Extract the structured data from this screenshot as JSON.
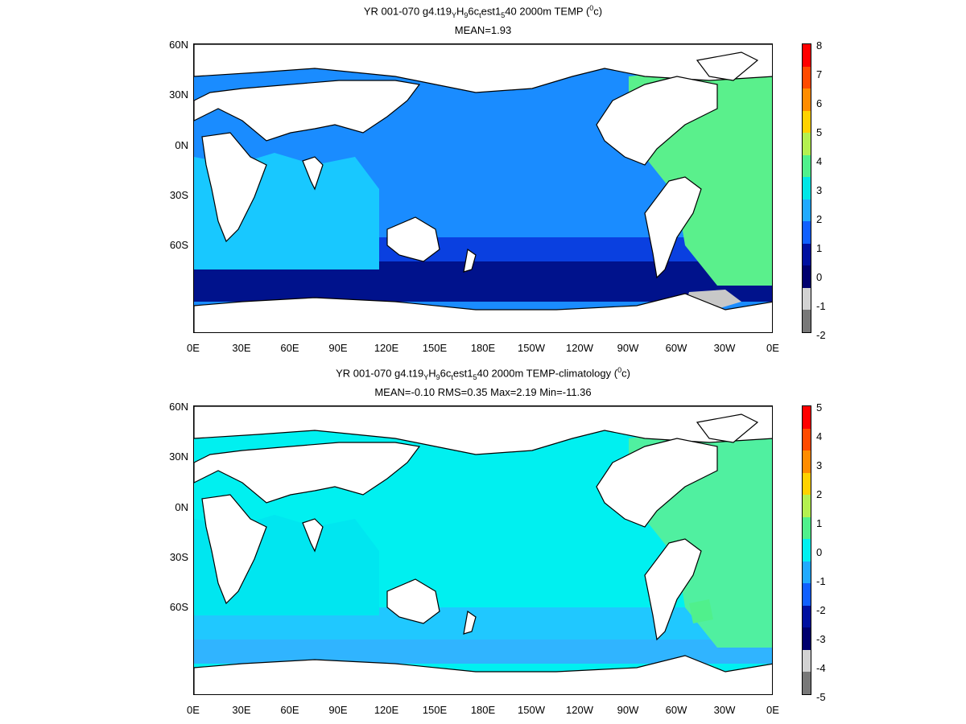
{
  "panels": [
    {
      "title_parts": [
        "YR 001-070 g4.t19",
        "Y",
        "H",
        "9",
        "6c",
        "t",
        "est1",
        "5",
        "40 2000m TEMP (",
        "0",
        "c)"
      ],
      "stats": "MEAN=1.93",
      "colorbar": {
        "labels": [
          "8",
          "7",
          "6",
          "5",
          "4",
          "3",
          "2",
          "1",
          "0",
          "-1",
          "-2"
        ],
        "colors": [
          "#ff0000",
          "#ff4a00",
          "#ff8c00",
          "#ffd200",
          "#b4f050",
          "#50f08c",
          "#00e6e6",
          "#20aaff",
          "#1060ff",
          "#0010a0",
          "#00006e",
          "#d2d2d2",
          "#787878"
        ]
      },
      "map": {
        "ocean_main": "#1a8cff",
        "ocean_deep": "#0a40e0",
        "southern": "#00128c",
        "atlantic": "#5af08c",
        "indian": "#18c8ff",
        "cold": "#c8c8c8"
      }
    },
    {
      "title_parts": [
        "YR 001-070 g4.t19",
        "Y",
        "H",
        "9",
        "6c",
        "t",
        "est1",
        "5",
        "40 2000m TEMP-climatology (",
        "0",
        "c)"
      ],
      "stats": "MEAN=-0.10   RMS=0.35   Max=2.19   Min=-11.36",
      "colorbar": {
        "labels": [
          "5",
          "4",
          "3",
          "2",
          "1",
          "0",
          "-1",
          "-2",
          "-3",
          "-4",
          "-5"
        ],
        "colors": [
          "#ff0000",
          "#ff4a00",
          "#ff8c00",
          "#ffd200",
          "#b4f050",
          "#50f08c",
          "#00f0f0",
          "#20aaff",
          "#1060ff",
          "#0010a0",
          "#00006e",
          "#d2d2d2",
          "#787878"
        ]
      },
      "map": {
        "ocean_main": "#00f0f0",
        "ocean_deep": "#20c8ff",
        "southern": "#30b4ff",
        "atlantic": "#50f0a0",
        "indian": "#00e6f0",
        "cold": "#50f08c"
      }
    }
  ],
  "x_ticks": [
    "0E",
    "30E",
    "60E",
    "90E",
    "120E",
    "150E",
    "180E",
    "150W",
    "120W",
    "90W",
    "60W",
    "30W",
    "0E"
  ],
  "y_ticks": [
    "60N",
    "30N",
    "0N",
    "30S",
    "60S"
  ]
}
